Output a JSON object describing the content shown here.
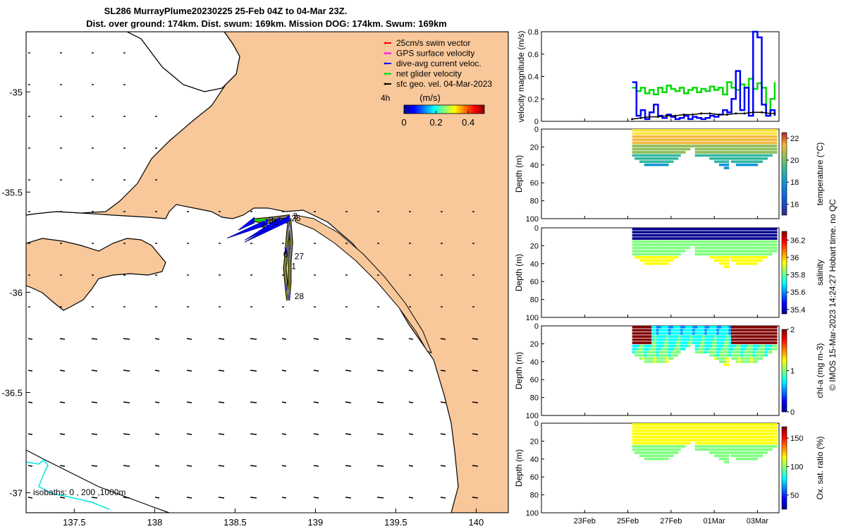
{
  "title": {
    "line1": "SL286 MurrayPlume20230225 25-Feb 04Z to 04-Mar 23Z.",
    "line2": "Dist. over ground: 174km. Dist. swum: 169km. Mission DOG: 174km. Swum: 169km"
  },
  "colors": {
    "land": "#F8C89A",
    "glider_track": "#FFFF00",
    "current": "#0000FF",
    "net": "#00DD00",
    "swim": "#FF0000",
    "gps": "#FF00FF",
    "sfc": "#000000",
    "isobath": "#00E5E5"
  },
  "chart_data": [
    {
      "type": "map",
      "name": "track-map",
      "x_ticks": [
        "137.5",
        "138",
        "138.5",
        "139",
        "139.5",
        "140"
      ],
      "x_tick_values": [
        137.5,
        138,
        138.5,
        139,
        139.5,
        140
      ],
      "y_ticks": [
        "-35",
        "-35.5",
        "-36",
        "-36.5",
        "-37"
      ],
      "y_tick_values": [
        -35,
        -35.5,
        -36,
        -36.5,
        -37
      ],
      "xlim": [
        137.2,
        140.2
      ],
      "ylim": [
        -37.1,
        -34.7
      ],
      "legend": [
        {
          "label": "25cm/s swim vector",
          "color": "#FF0000"
        },
        {
          "label": "GPS surface velocity",
          "color": "#FF00FF"
        },
        {
          "label": "dive-avg current veloc.",
          "color": "#0000FF"
        },
        {
          "label": "net glider velocity",
          "color": "#00DD00"
        },
        {
          "label": "sfc geo. vel. 04-Mar-2023",
          "color": "#000000"
        }
      ],
      "colorbar": {
        "label": "(m/s)",
        "ticks": [
          "0",
          "0.2",
          "0.4"
        ],
        "range": [
          0,
          0.5
        ],
        "time_label": "4h"
      },
      "isobath_note": "isobaths: 0 , 200 ,1000m",
      "track_labels": [
        {
          "text": "26",
          "lon": 138.85,
          "lat": -35.63
        },
        {
          "text": "2",
          "lon": 138.86,
          "lat": -35.62
        },
        {
          "text": "4",
          "lon": 138.66,
          "lat": -35.67
        },
        {
          "text": "3",
          "lon": 138.71,
          "lat": -35.64
        },
        {
          "text": "5",
          "lon": 138.74,
          "lat": -35.65
        },
        {
          "text": "6",
          "lon": 138.8,
          "lat": -35.81
        },
        {
          "text": "27",
          "lon": 138.87,
          "lat": -35.82
        },
        {
          "text": "1",
          "lon": 138.85,
          "lat": -35.87
        },
        {
          "text": "28",
          "lon": 138.87,
          "lat": -36.02
        }
      ],
      "track": [
        [
          138.84,
          -35.63
        ],
        [
          138.83,
          -35.7
        ],
        [
          138.82,
          -35.8
        ],
        [
          138.81,
          -35.88
        ],
        [
          138.82,
          -35.97
        ],
        [
          138.83,
          -36.04
        ],
        [
          138.84,
          -35.95
        ],
        [
          138.84,
          -35.85
        ],
        [
          138.85,
          -35.75
        ],
        [
          138.84,
          -35.65
        ],
        [
          138.78,
          -35.64
        ],
        [
          138.7,
          -35.65
        ],
        [
          138.62,
          -35.64
        ],
        [
          138.75,
          -35.63
        ],
        [
          138.84,
          -35.62
        ]
      ],
      "current_vectors": [
        [
          138.84,
          -35.63,
          -0.28,
          -0.12
        ],
        [
          138.78,
          -35.64,
          -0.22,
          -0.1
        ],
        [
          138.7,
          -35.65,
          -0.25,
          -0.08
        ],
        [
          138.62,
          -35.64,
          -0.1,
          -0.05
        ],
        [
          138.82,
          -35.8,
          -0.01,
          0.02
        ],
        [
          138.82,
          -35.97,
          0.0,
          -0.02
        ]
      ]
    },
    {
      "type": "line",
      "name": "velocity-magnitude",
      "ylabel": "velocity magnitude (m/s)",
      "y_ticks": [
        "0",
        "0.2",
        "0.4",
        "0.6",
        "0.8"
      ],
      "ylim": [
        0,
        0.8
      ],
      "xlim_days": [
        0,
        11
      ],
      "series": [
        {
          "name": "net glider velocity",
          "color": "#00DD00",
          "x": [
            4.2,
            4.4,
            4.6,
            4.8,
            5.0,
            5.2,
            5.4,
            5.6,
            5.8,
            6.0,
            6.2,
            6.4,
            6.6,
            6.8,
            7.0,
            7.2,
            7.4,
            7.6,
            7.8,
            8.0,
            8.2,
            8.4,
            8.6,
            8.8,
            9.0,
            9.2,
            9.4,
            9.6,
            9.8,
            10.0,
            10.2,
            10.4,
            10.6,
            10.8
          ],
          "y": [
            0.3,
            0.27,
            0.3,
            0.25,
            0.28,
            0.24,
            0.3,
            0.26,
            0.32,
            0.29,
            0.27,
            0.3,
            0.25,
            0.28,
            0.3,
            0.26,
            0.29,
            0.27,
            0.31,
            0.28,
            0.3,
            0.24,
            0.35,
            0.3,
            0.28,
            0.33,
            0.3,
            0.38,
            0.29,
            0.34,
            0.3,
            0.05,
            0.2,
            0.35
          ]
        },
        {
          "name": "dive-avg current veloc.",
          "color": "#0000FF",
          "x": [
            4.2,
            4.4,
            4.6,
            4.8,
            5.0,
            5.2,
            5.4,
            5.6,
            5.8,
            6.0,
            6.2,
            6.4,
            6.6,
            6.8,
            7.0,
            7.2,
            7.4,
            7.6,
            7.8,
            8.0,
            8.2,
            8.4,
            8.6,
            8.8,
            9.0,
            9.2,
            9.4,
            9.6,
            9.8,
            10.0,
            10.2,
            10.4,
            10.6,
            10.8
          ],
          "y": [
            0.35,
            0.05,
            0.1,
            0.02,
            0.08,
            0.15,
            0.05,
            0.03,
            0.06,
            0.04,
            0.02,
            0.03,
            0.05,
            0.02,
            0.04,
            0.03,
            0.02,
            0.03,
            0.05,
            0.04,
            0.06,
            0.1,
            0.08,
            0.2,
            0.45,
            0.1,
            0.3,
            0.05,
            0.8,
            0.75,
            0.15,
            0.05,
            0.1,
            0.05
          ]
        },
        {
          "name": "sfc geo. vel.",
          "color": "#000000",
          "x": [
            4.2,
            4.6,
            5.0,
            5.4,
            5.8,
            6.2,
            6.6,
            7.0,
            7.4,
            7.8,
            8.2,
            8.6,
            9.0,
            9.4,
            9.8,
            10.2,
            10.6,
            10.8
          ],
          "y": [
            0.02,
            0.03,
            0.04,
            0.04,
            0.05,
            0.05,
            0.06,
            0.06,
            0.07,
            0.07,
            0.06,
            0.06,
            0.07,
            0.07,
            0.08,
            0.08,
            0.07,
            0.07
          ]
        }
      ]
    },
    {
      "type": "heatmap",
      "name": "temperature-section",
      "ylabel": "Depth (m)",
      "colorbar_label": "temperature (°C)",
      "y_ticks": [
        "0",
        "20",
        "40",
        "60",
        "80",
        "100"
      ],
      "cb_ticks": [
        "16",
        "18",
        "20",
        "22"
      ],
      "cb_range": [
        15,
        22.5
      ],
      "surface": 21.8,
      "bottom": 17.5
    },
    {
      "type": "heatmap",
      "name": "salinity-section",
      "ylabel": "Depth (m)",
      "colorbar_label": "salinity",
      "y_ticks": [
        "0",
        "20",
        "40",
        "60",
        "80",
        "100"
      ],
      "cb_ticks": [
        "35.4",
        "35.6",
        "35.8",
        "36",
        "36.2"
      ],
      "cb_range": [
        35.35,
        36.3
      ],
      "surface": 35.4,
      "bottom": 35.85
    },
    {
      "type": "heatmap",
      "name": "chla-section",
      "ylabel": "Depth (m)",
      "colorbar_label": "chl-a (mg m-3)",
      "y_ticks": [
        "0",
        "20",
        "40",
        "60",
        "80",
        "100"
      ],
      "cb_ticks": [
        "0",
        "1",
        "2"
      ],
      "cb_range": [
        0,
        2
      ],
      "surface": 1.2,
      "bottom": 0.9
    },
    {
      "type": "heatmap",
      "name": "oxygen-section",
      "ylabel": "Depth (m)",
      "colorbar_label": "Ox. sat. ratio (%)",
      "y_ticks": [
        "0",
        "20",
        "40",
        "60",
        "80",
        "100"
      ],
      "cb_ticks": [
        "50",
        "100",
        "150"
      ],
      "cb_range": [
        25,
        170
      ],
      "surface": 118,
      "bottom": 95
    }
  ],
  "time_axis": {
    "labels": [
      "23Feb",
      "25Feb",
      "27Feb",
      "01Mar",
      "03Mar"
    ],
    "day_values": [
      2,
      4,
      6,
      8,
      10
    ]
  },
  "footer": "© IMOS 15-Mar-2023 14:24:27 Hobart time. no QC"
}
